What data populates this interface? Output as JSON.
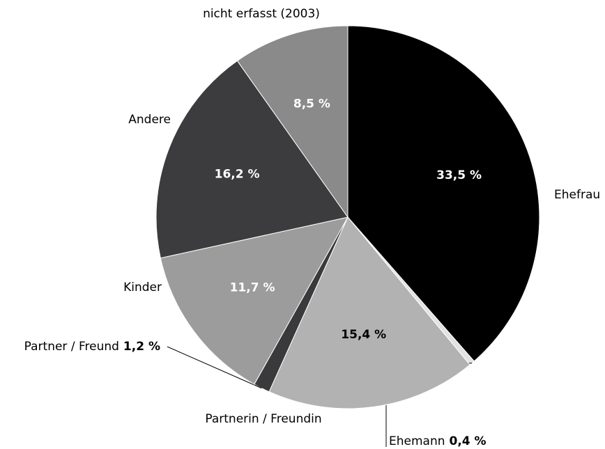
{
  "chart_data": {
    "type": "pie",
    "categories": [
      "Ehefrau",
      "Ehemann",
      "Partnerin / Freundin",
      "Partner / Freund",
      "Kinder",
      "Andere",
      "nicht erfasst (2003)"
    ],
    "values": [
      33.5,
      0.4,
      15.4,
      1.2,
      11.7,
      16.2,
      8.5
    ],
    "value_labels": [
      "33,5 %",
      "0,4 %",
      "15,4 %",
      "1,2 %",
      "11,7 %",
      "16,2 %",
      "8,5 %"
    ],
    "colors": [
      "#000000",
      "#e2e2e2",
      "#b2b2b2",
      "#3a3a3c",
      "#9c9c9c",
      "#3c3c3e",
      "#8a8a8a"
    ]
  }
}
